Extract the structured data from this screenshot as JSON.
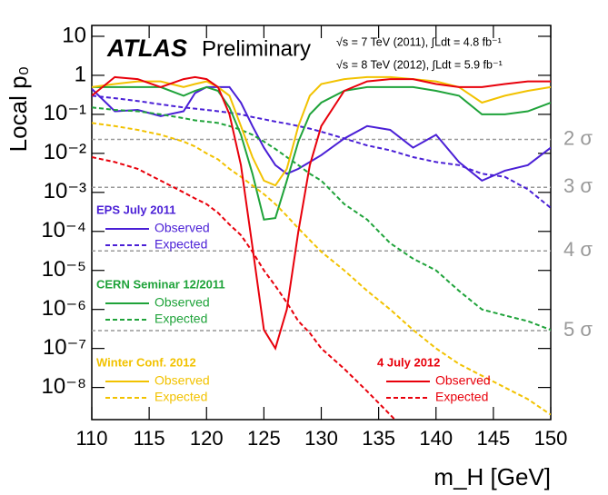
{
  "chart_data": {
    "type": "line",
    "title": "ATLAS",
    "subtitle": "Preliminary",
    "annotations": [
      "√s = 7 TeV (2011), ∫Ldt = 4.8 fb⁻¹",
      "√s = 8 TeV (2012), ∫Ldt = 5.9 fb⁻¹"
    ],
    "x_label": "m_H [GeV]",
    "y_label": "Local p₀",
    "log_y": true,
    "xlim": [
      110,
      150
    ],
    "xticks": [
      110,
      115,
      120,
      125,
      130,
      135,
      140,
      145,
      150
    ],
    "ylim": [
      1.5e-09,
      19
    ],
    "yticks": [
      10,
      1,
      {
        "value": 0.1,
        "label": "10⁻¹"
      },
      {
        "value": 0.01,
        "label": "10⁻²"
      },
      {
        "value": 0.001,
        "label": "10⁻³"
      },
      {
        "value": 0.0001,
        "label": "10⁻⁴"
      },
      {
        "value": 1e-05,
        "label": "10⁻⁵"
      },
      {
        "value": 1e-06,
        "label": "10⁻⁶"
      },
      {
        "value": 1e-07,
        "label": "10⁻⁷"
      },
      {
        "value": 1e-08,
        "label": "10⁻⁸"
      }
    ],
    "sigma_lines": [
      {
        "value": 0.0228,
        "label": "2 σ"
      },
      {
        "value": 0.00135,
        "label": "3 σ"
      },
      {
        "value": 3.17e-05,
        "label": "4 σ"
      },
      {
        "value": 2.87e-07,
        "label": "5 σ"
      }
    ],
    "legend_groups": [
      {
        "title": "EPS July 2011",
        "color": "#4a1fd6"
      },
      {
        "title": "CERN Seminar 12/2011",
        "color": "#1fa33a"
      },
      {
        "title": "Winter Conf. 2012",
        "color": "#f2c200"
      },
      {
        "title": "4 July 2012",
        "color": "#e8000b"
      }
    ],
    "x": [
      110,
      112,
      114,
      116,
      118,
      119,
      120,
      121,
      122,
      123,
      124,
      125,
      126,
      127,
      128,
      129,
      130,
      132,
      134,
      136,
      138,
      140,
      142,
      144,
      146,
      148,
      150
    ],
    "series": [
      {
        "name": "Observed",
        "group": 0,
        "color": "#4a1fd6",
        "dashed": false,
        "values": [
          0.45,
          0.12,
          0.13,
          0.09,
          0.12,
          0.35,
          0.5,
          0.5,
          0.5,
          0.2,
          0.05,
          0.014,
          0.005,
          0.003,
          0.004,
          0.006,
          0.009,
          0.024,
          0.05,
          0.04,
          0.014,
          0.03,
          0.006,
          0.002,
          0.0036,
          0.005,
          0.014
        ]
      },
      {
        "name": "Expected",
        "group": 0,
        "color": "#4a1fd6",
        "dashed": true,
        "values": [
          0.3,
          0.26,
          0.22,
          0.18,
          0.15,
          0.14,
          0.13,
          0.12,
          0.11,
          0.1,
          0.085,
          0.075,
          0.065,
          0.058,
          0.05,
          0.043,
          0.036,
          0.024,
          0.016,
          0.012,
          0.008,
          0.006,
          0.005,
          0.003,
          0.0025,
          0.0012,
          0.0004
        ]
      },
      {
        "name": "Observed",
        "group": 1,
        "color": "#1fa33a",
        "dashed": false,
        "values": [
          0.5,
          0.5,
          0.5,
          0.5,
          0.3,
          0.4,
          0.5,
          0.4,
          0.15,
          0.03,
          0.003,
          0.0002,
          0.00022,
          0.002,
          0.02,
          0.1,
          0.2,
          0.4,
          0.5,
          0.5,
          0.5,
          0.4,
          0.3,
          0.1,
          0.1,
          0.12,
          0.2
        ]
      },
      {
        "name": "Expected",
        "group": 1,
        "color": "#1fa33a",
        "dashed": true,
        "values": [
          0.15,
          0.13,
          0.12,
          0.1,
          0.08,
          0.07,
          0.065,
          0.06,
          0.05,
          0.04,
          0.03,
          0.02,
          0.013,
          0.008,
          0.005,
          0.003,
          0.002,
          0.0005,
          0.0002,
          5e-05,
          2e-05,
          1e-05,
          3e-06,
          1e-06,
          7e-07,
          5e-07,
          3e-07
        ]
      },
      {
        "name": "Observed",
        "group": 2,
        "color": "#f2c200",
        "dashed": false,
        "values": [
          0.5,
          0.6,
          0.7,
          0.7,
          0.5,
          0.6,
          0.7,
          0.5,
          0.3,
          0.05,
          0.008,
          0.002,
          0.0015,
          0.004,
          0.05,
          0.3,
          0.6,
          0.8,
          0.9,
          0.9,
          0.8,
          0.7,
          0.5,
          0.2,
          0.3,
          0.4,
          0.5
        ]
      },
      {
        "name": "Expected",
        "group": 2,
        "color": "#f2c200",
        "dashed": true,
        "values": [
          0.06,
          0.05,
          0.04,
          0.03,
          0.02,
          0.015,
          0.01,
          0.007,
          0.004,
          0.0025,
          0.0015,
          0.0009,
          0.0005,
          0.00025,
          0.00012,
          6e-05,
          3e-05,
          1e-05,
          3e-06,
          1e-06,
          3e-07,
          1e-07,
          4e-08,
          2e-08,
          1e-08,
          5e-09,
          2e-09
        ]
      },
      {
        "name": "Observed",
        "group": 3,
        "color": "#e8000b",
        "dashed": false,
        "values": [
          0.3,
          0.9,
          0.8,
          0.5,
          0.8,
          0.9,
          0.8,
          0.5,
          0.1,
          0.005,
          4e-05,
          3e-07,
          1e-07,
          1e-06,
          0.0001,
          0.005,
          0.05,
          0.4,
          0.7,
          0.8,
          0.8,
          0.6,
          0.5,
          0.5,
          0.6,
          0.7,
          0.7
        ]
      },
      {
        "name": "Expected",
        "group": 3,
        "color": "#e8000b",
        "dashed": true,
        "values": [
          0.008,
          0.006,
          0.004,
          0.002,
          0.001,
          0.0007,
          0.0005,
          0.0003,
          0.00015,
          8e-05,
          3e-05,
          1e-05,
          4e-06,
          1.5e-06,
          5e-07,
          2.5e-07,
          1e-07,
          3e-08,
          8e-09,
          2e-09,
          5e-10,
          null,
          null,
          null,
          null,
          null,
          null
        ]
      }
    ]
  }
}
